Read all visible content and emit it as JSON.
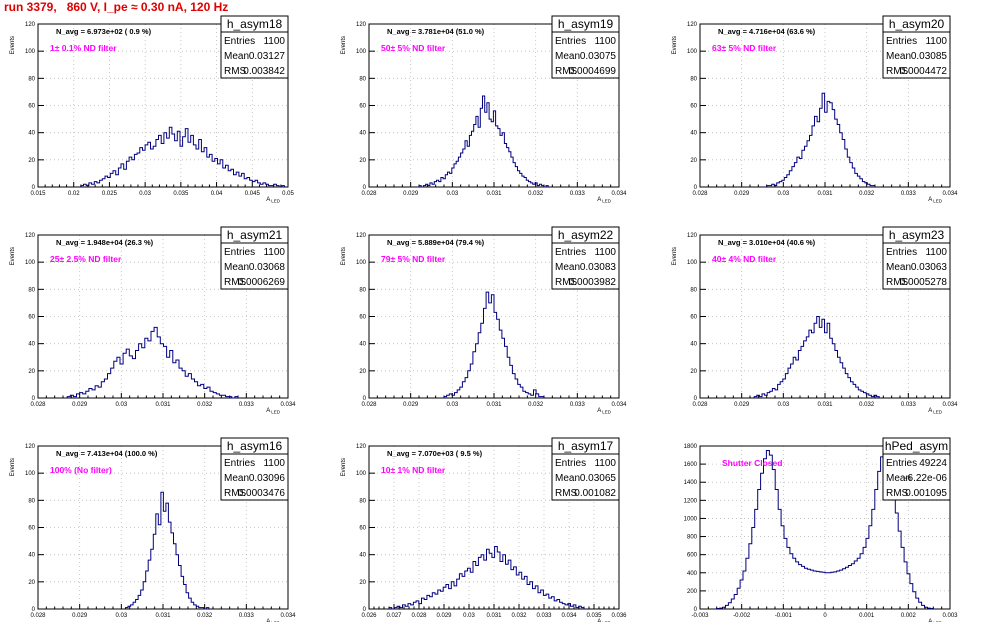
{
  "page_title": "run 3379,   860 V, I_pe ≈ 0.30 nA, 120 Hz",
  "stats_labels": {
    "entries": "Entries",
    "mean": "Mean",
    "rms": "RMS"
  },
  "chart_data": [
    {
      "name": "h_asym18",
      "type": "histogram",
      "ylabel": "Events",
      "xlabel": "A_LED",
      "navg": "N_avg = 6.973e+02 ( 0.9 %)",
      "filter": "1± 0.1% ND filter",
      "entries": "1100",
      "mean": "0.03127",
      "rms": "0.003842",
      "xlim": [
        0.015,
        0.05
      ],
      "ylim": [
        0,
        120
      ],
      "xticks": [
        "0.015",
        "0.02",
        "0.025",
        "0.03",
        "0.035",
        "0.04",
        "0.045",
        "0.05"
      ],
      "yticks": [
        "0",
        "20",
        "40",
        "60",
        "80",
        "100",
        "120"
      ],
      "bin_edges": [
        0.021,
        0.0495
      ],
      "counts": [
        1,
        2,
        1,
        3,
        2,
        4,
        3,
        5,
        6,
        8,
        7,
        10,
        12,
        9,
        14,
        17,
        13,
        19,
        22,
        20,
        24,
        25,
        29,
        27,
        31,
        33,
        28,
        30,
        35,
        38,
        32,
        40,
        36,
        44,
        39,
        34,
        41,
        30,
        37,
        43,
        33,
        38,
        31,
        28,
        35,
        26,
        29,
        22,
        24,
        19,
        21,
        17,
        20,
        14,
        16,
        12,
        13,
        9,
        11,
        8,
        10,
        6,
        7,
        5,
        4,
        5,
        3,
        2,
        3,
        2,
        1,
        1,
        2,
        1,
        0,
        1
      ]
    },
    {
      "name": "h_asym19",
      "type": "histogram",
      "ylabel": "Events",
      "xlabel": "A_LED",
      "navg": "N_avg = 3.781e+04 (51.0 %)",
      "filter": "50± 5% ND filter",
      "entries": "1100",
      "mean": "0.03075",
      "rms": "0.0004699",
      "xlim": [
        0.028,
        0.034
      ],
      "ylim": [
        0,
        120
      ],
      "xticks": [
        "0.028",
        "0.029",
        "0.03",
        "0.031",
        "0.032",
        "0.033",
        "0.034"
      ],
      "yticks": [
        "0",
        "20",
        "40",
        "60",
        "80",
        "100",
        "120"
      ],
      "bin_edges": [
        0.0292,
        0.0323
      ],
      "counts": [
        1,
        0,
        1,
        2,
        1,
        3,
        2,
        4,
        5,
        4,
        7,
        6,
        9,
        11,
        10,
        14,
        17,
        19,
        22,
        25,
        28,
        34,
        30,
        38,
        41,
        46,
        52,
        44,
        58,
        67,
        55,
        62,
        50,
        48,
        56,
        45,
        43,
        38,
        40,
        32,
        29,
        26,
        22,
        18,
        15,
        12,
        10,
        8,
        7,
        5,
        4,
        3,
        2,
        3,
        1,
        2,
        1,
        0,
        1
      ]
    },
    {
      "name": "h_asym20",
      "type": "histogram",
      "ylabel": "Events",
      "xlabel": "A_LED",
      "navg": "N_avg = 4.716e+04 (63.6 %)",
      "filter": "63± 5% ND filter",
      "entries": "1100",
      "mean": "0.03085",
      "rms": "0.0004472",
      "xlim": [
        0.028,
        0.034
      ],
      "ylim": [
        0,
        120
      ],
      "xticks": [
        "0.028",
        "0.029",
        "0.03",
        "0.031",
        "0.032",
        "0.033",
        "0.034"
      ],
      "yticks": [
        "0",
        "20",
        "40",
        "60",
        "80",
        "100",
        "120"
      ],
      "bin_edges": [
        0.0296,
        0.0322
      ],
      "counts": [
        1,
        1,
        2,
        1,
        3,
        4,
        5,
        7,
        9,
        12,
        15,
        18,
        22,
        21,
        27,
        30,
        34,
        38,
        45,
        52,
        48,
        58,
        69,
        55,
        63,
        62,
        57,
        50,
        46,
        40,
        35,
        28,
        22,
        18,
        14,
        10,
        8,
        6,
        4,
        3,
        2,
        1,
        1
      ]
    },
    {
      "name": "h_asym21",
      "type": "histogram",
      "ylabel": "Events",
      "xlabel": "A_LED",
      "navg": "N_avg = 1.948e+04 (26.3 %)",
      "filter": "25± 2.5% ND filter",
      "entries": "1100",
      "mean": "0.03068",
      "rms": "0.0006269",
      "xlim": [
        0.028,
        0.034
      ],
      "ylim": [
        0,
        120
      ],
      "xticks": [
        "0.028",
        "0.029",
        "0.03",
        "0.031",
        "0.032",
        "0.033",
        "0.034"
      ],
      "yticks": [
        "0",
        "20",
        "40",
        "60",
        "80",
        "100",
        "120"
      ],
      "bin_edges": [
        0.0287,
        0.0328
      ],
      "counts": [
        1,
        2,
        1,
        3,
        4,
        3,
        5,
        7,
        6,
        9,
        8,
        12,
        14,
        18,
        22,
        27,
        30,
        25,
        33,
        36,
        31,
        29,
        35,
        40,
        37,
        44,
        42,
        49,
        52,
        45,
        40,
        38,
        30,
        35,
        26,
        28,
        22,
        20,
        16,
        18,
        14,
        12,
        9,
        10,
        7,
        8,
        5,
        4,
        3,
        2,
        2,
        1,
        1,
        0,
        1
      ]
    },
    {
      "name": "h_asym22",
      "type": "histogram",
      "ylabel": "Events",
      "xlabel": "A_LED",
      "navg": "N_avg = 5.889e+04 (79.4 %)",
      "filter": "79± 5% ND filter",
      "entries": "1100",
      "mean": "0.03083",
      "rms": "0.0003982",
      "xlim": [
        0.028,
        0.034
      ],
      "ylim": [
        0,
        120
      ],
      "xticks": [
        "0.028",
        "0.029",
        "0.03",
        "0.031",
        "0.032",
        "0.033",
        "0.034"
      ],
      "yticks": [
        "0",
        "20",
        "40",
        "60",
        "80",
        "100",
        "120"
      ],
      "bin_edges": [
        0.0298,
        0.0322
      ],
      "counts": [
        1,
        2,
        3,
        2,
        4,
        6,
        8,
        12,
        15,
        20,
        25,
        34,
        40,
        48,
        55,
        66,
        78,
        70,
        76,
        63,
        58,
        50,
        44,
        38,
        30,
        24,
        18,
        14,
        10,
        8,
        5,
        4,
        3,
        2,
        6,
        3,
        1,
        1
      ]
    },
    {
      "name": "h_asym23",
      "type": "histogram",
      "ylabel": "Events",
      "xlabel": "A_LED",
      "navg": "N_avg = 3.010e+04 (40.6 %)",
      "filter": "40± 4% ND filter",
      "entries": "1100",
      "mean": "0.03063",
      "rms": "0.0005278",
      "xlim": [
        0.028,
        0.034
      ],
      "ylim": [
        0,
        120
      ],
      "xticks": [
        "0.028",
        "0.029",
        "0.03",
        "0.031",
        "0.032",
        "0.033",
        "0.034"
      ],
      "yticks": [
        "0",
        "20",
        "40",
        "60",
        "80",
        "100",
        "120"
      ],
      "bin_edges": [
        0.0293,
        0.0323
      ],
      "counts": [
        1,
        2,
        1,
        3,
        2,
        4,
        5,
        7,
        6,
        10,
        12,
        14,
        18,
        22,
        25,
        30,
        28,
        35,
        38,
        42,
        45,
        50,
        48,
        55,
        60,
        52,
        58,
        48,
        55,
        44,
        40,
        35,
        30,
        26,
        22,
        18,
        15,
        12,
        10,
        8,
        6,
        5,
        4,
        3,
        2,
        1,
        2,
        1
      ]
    },
    {
      "name": "h_asym16",
      "type": "histogram",
      "ylabel": "Events",
      "xlabel": "A_LED",
      "navg": "N_avg = 7.413e+04 (100.0 %)",
      "filter": "100% (No filter)",
      "entries": "1100",
      "mean": "0.03096",
      "rms": "0.0003476",
      "xlim": [
        0.028,
        0.034
      ],
      "ylim": [
        0,
        120
      ],
      "xticks": [
        "0.028",
        "0.029",
        "0.03",
        "0.031",
        "0.032",
        "0.033",
        "0.034"
      ],
      "yticks": [
        "0",
        "20",
        "40",
        "60",
        "80",
        "100",
        "120"
      ],
      "bin_edges": [
        0.0301,
        0.0321
      ],
      "counts": [
        1,
        2,
        3,
        5,
        7,
        10,
        14,
        20,
        28,
        36,
        44,
        55,
        70,
        62,
        86,
        72,
        78,
        64,
        56,
        48,
        40,
        32,
        24,
        18,
        12,
        8,
        5,
        3,
        2,
        1,
        1,
        0,
        1
      ]
    },
    {
      "name": "h_asym17",
      "type": "histogram",
      "ylabel": "Events",
      "xlabel": "A_LED",
      "navg": "N_avg = 7.070e+03 ( 9.5 %)",
      "filter": "10± 1% ND filter",
      "entries": "1100",
      "mean": "0.03065",
      "rms": "0.001082",
      "xlim": [
        0.026,
        0.036
      ],
      "ylim": [
        0,
        120
      ],
      "xticks": [
        "0.026",
        "0.027",
        "0.028",
        "0.029",
        "0.03",
        "0.031",
        "0.032",
        "0.033",
        "0.034",
        "0.035",
        "0.036"
      ],
      "yticks": [
        "0",
        "20",
        "40",
        "60",
        "80",
        "100",
        "120"
      ],
      "bin_edges": [
        0.0268,
        0.0346
      ],
      "counts": [
        1,
        0,
        1,
        2,
        1,
        3,
        2,
        4,
        3,
        5,
        6,
        4,
        8,
        7,
        10,
        9,
        12,
        11,
        14,
        13,
        16,
        18,
        15,
        20,
        17,
        22,
        26,
        24,
        28,
        30,
        27,
        35,
        32,
        38,
        40,
        36,
        44,
        41,
        38,
        46,
        42,
        35,
        40,
        33,
        36,
        29,
        31,
        25,
        27,
        22,
        24,
        18,
        20,
        15,
        17,
        12,
        14,
        10,
        11,
        8,
        9,
        6,
        7,
        5,
        4,
        3,
        4,
        2,
        3,
        1,
        2,
        1
      ]
    },
    {
      "name": "hPed_asym",
      "type": "histogram",
      "ylabel": "",
      "xlabel": "A_LED",
      "navg": "",
      "filter": "Shutter Closed",
      "entries": "49224",
      "mean": "-6.22e-06",
      "rms": "0.001095",
      "xlim": [
        -0.003,
        0.003
      ],
      "ylim": [
        0,
        1800
      ],
      "xticks": [
        "-0.003",
        "-0.002",
        "-0.001",
        "0",
        "0.001",
        "0.002",
        "0.003"
      ],
      "yticks": [
        "0",
        "200",
        "400",
        "600",
        "800",
        "1000",
        "1200",
        "1400",
        "1600",
        "1800"
      ],
      "bin_edges": [
        -0.0026,
        0.0026
      ],
      "counts": [
        5,
        10,
        20,
        40,
        70,
        110,
        160,
        230,
        320,
        420,
        560,
        720,
        900,
        1100,
        1320,
        1500,
        1660,
        1750,
        1700,
        1540,
        1320,
        1100,
        920,
        780,
        680,
        610,
        560,
        520,
        490,
        470,
        450,
        440,
        430,
        420,
        415,
        410,
        405,
        400,
        400,
        405,
        410,
        420,
        430,
        445,
        460,
        480,
        500,
        530,
        560,
        610,
        680,
        780,
        920,
        1100,
        1320,
        1520,
        1680,
        1720,
        1650,
        1480,
        1280,
        1060,
        860,
        680,
        520,
        390,
        280,
        190,
        120,
        75,
        40,
        20,
        10,
        5
      ]
    }
  ]
}
